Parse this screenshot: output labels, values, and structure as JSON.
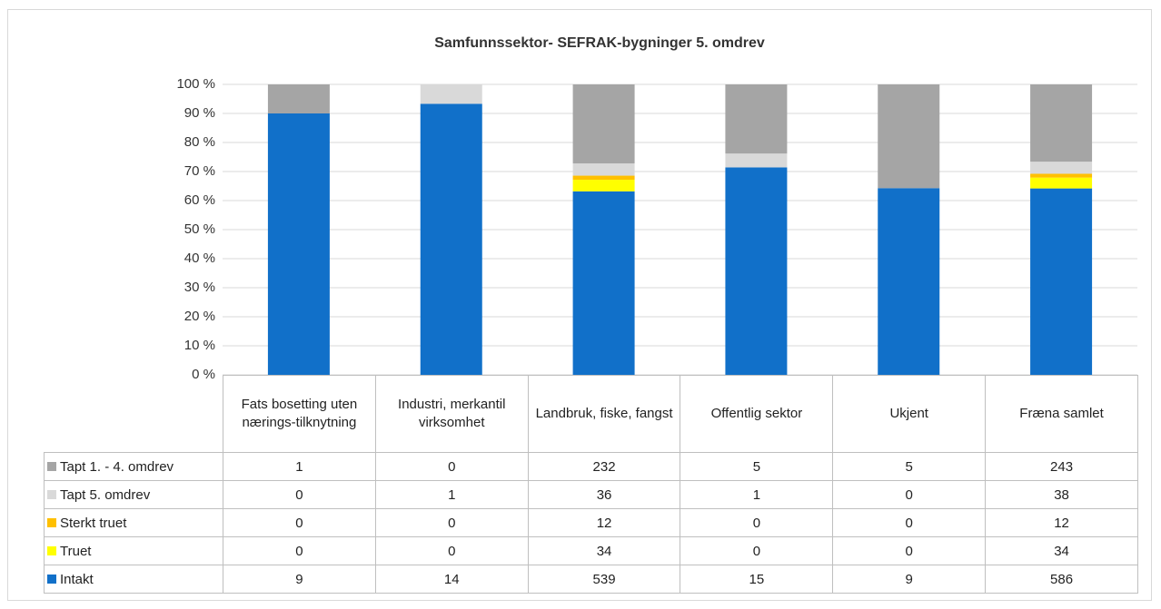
{
  "chart_data": {
    "type": "bar",
    "stacking": "percent",
    "title": "Samfunnssektor- SEFRAK-bygninger 5. omdrev",
    "categories": [
      "Fats bosetting uten nærings-tilknytning",
      "Industri, merkantil virksomhet",
      "Landbruk, fiske, fangst",
      "Offentlig sektor",
      "Ukjent",
      "Fræna samlet"
    ],
    "series": [
      {
        "name": "Intakt",
        "color": "#1170c9",
        "values": [
          9,
          14,
          539,
          15,
          9,
          586
        ]
      },
      {
        "name": "Truet",
        "color": "#ffff00",
        "values": [
          0,
          0,
          34,
          0,
          0,
          34
        ]
      },
      {
        "name": "Sterkt truet",
        "color": "#ffc000",
        "values": [
          0,
          0,
          12,
          0,
          0,
          12
        ]
      },
      {
        "name": "Tapt 5. omdrev",
        "color": "#d9d9d9",
        "values": [
          0,
          1,
          36,
          1,
          0,
          38
        ]
      },
      {
        "name": "Tapt 1. - 4. omdrev",
        "color": "#a5a5a5",
        "values": [
          1,
          0,
          232,
          5,
          5,
          243
        ]
      }
    ],
    "ylim": [
      0,
      100
    ],
    "yticks": [
      {
        "value": 0,
        "label": "0 %"
      },
      {
        "value": 10,
        "label": "10 %"
      },
      {
        "value": 20,
        "label": "20 %"
      },
      {
        "value": 30,
        "label": "30 %"
      },
      {
        "value": 40,
        "label": "40 %"
      },
      {
        "value": 50,
        "label": "50 %"
      },
      {
        "value": 60,
        "label": "60 %"
      },
      {
        "value": 70,
        "label": "70 %"
      },
      {
        "value": 80,
        "label": "80 %"
      },
      {
        "value": 90,
        "label": "90 %"
      },
      {
        "value": 100,
        "label": "100 %"
      }
    ],
    "grid": true
  }
}
